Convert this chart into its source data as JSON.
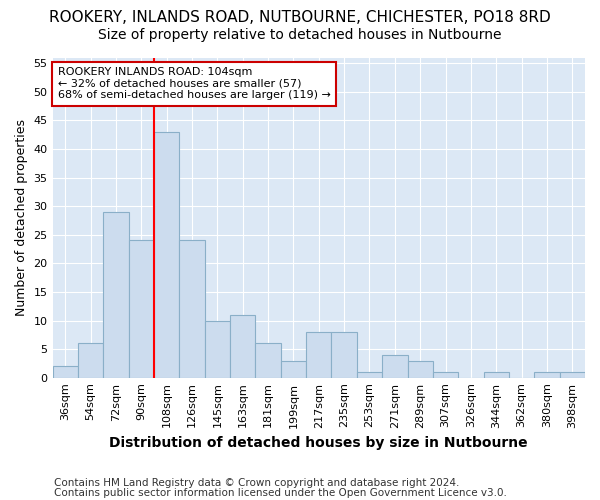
{
  "title_line1": "ROOKERY, INLANDS ROAD, NUTBOURNE, CHICHESTER, PO18 8RD",
  "title_line2": "Size of property relative to detached houses in Nutbourne",
  "xlabel": "Distribution of detached houses by size in Nutbourne",
  "ylabel": "Number of detached properties",
  "categories": [
    "36sqm",
    "54sqm",
    "72sqm",
    "90sqm",
    "108sqm",
    "126sqm",
    "145sqm",
    "163sqm",
    "181sqm",
    "199sqm",
    "217sqm",
    "235sqm",
    "253sqm",
    "271sqm",
    "289sqm",
    "307sqm",
    "326sqm",
    "344sqm",
    "362sqm",
    "380sqm",
    "398sqm"
  ],
  "values": [
    2,
    6,
    29,
    24,
    43,
    24,
    10,
    11,
    6,
    3,
    8,
    8,
    1,
    4,
    3,
    1,
    0,
    1,
    0,
    1,
    1
  ],
  "bar_color": "#ccdcee",
  "bar_edge_color": "#8aafc8",
  "red_line_index": 4,
  "annotation_line1": "ROOKERY INLANDS ROAD: 104sqm",
  "annotation_line2": "← 32% of detached houses are smaller (57)",
  "annotation_line3": "68% of semi-detached houses are larger (119) →",
  "annotation_box_color": "#ffffff",
  "annotation_box_edge_color": "#cc0000",
  "ylim": [
    0,
    56
  ],
  "yticks": [
    0,
    5,
    10,
    15,
    20,
    25,
    30,
    35,
    40,
    45,
    50,
    55
  ],
  "footer_line1": "Contains HM Land Registry data © Crown copyright and database right 2024.",
  "footer_line2": "Contains public sector information licensed under the Open Government Licence v3.0.",
  "fig_bg_color": "#ffffff",
  "plot_bg_color": "#dce8f5",
  "grid_color": "#ffffff",
  "title1_fontsize": 11,
  "title2_fontsize": 10,
  "ylabel_fontsize": 9,
  "xlabel_fontsize": 10,
  "tick_fontsize": 8,
  "annot_fontsize": 8,
  "footer_fontsize": 7.5
}
